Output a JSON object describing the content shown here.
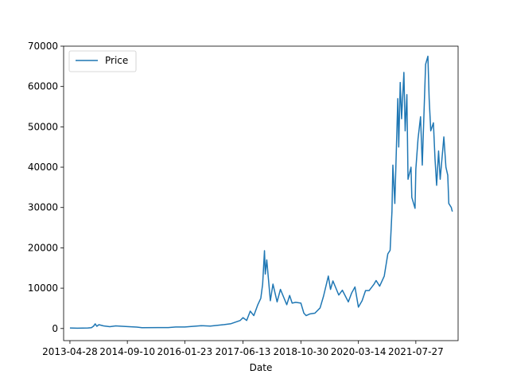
{
  "chart_data": {
    "type": "line",
    "title": "",
    "xlabel": "Date",
    "ylabel": "",
    "legend": {
      "placement": "top-left",
      "entries": [
        "Price"
      ]
    },
    "series_color": "#1f77b4",
    "x_ticks": [
      "2013-04-28",
      "2014-09-10",
      "2016-01-23",
      "2017-06-13",
      "2018-10-30",
      "2020-03-14",
      "2021-07-27"
    ],
    "y_ticks": [
      0,
      10000,
      20000,
      30000,
      40000,
      50000,
      60000,
      70000
    ],
    "ylim": [
      -3000,
      70000
    ],
    "xlim": [
      "2013-03-04",
      "2022-07-30"
    ],
    "grid": false,
    "series": [
      {
        "name": "Price",
        "points": [
          [
            "2013-04-28",
            135
          ],
          [
            "2013-07-01",
            90
          ],
          [
            "2013-10-01",
            125
          ],
          [
            "2013-11-01",
            200
          ],
          [
            "2013-11-20",
            600
          ],
          [
            "2013-12-04",
            1150
          ],
          [
            "2013-12-18",
            550
          ],
          [
            "2014-01-05",
            950
          ],
          [
            "2014-02-15",
            650
          ],
          [
            "2014-04-10",
            450
          ],
          [
            "2014-06-01",
            640
          ],
          [
            "2014-09-10",
            480
          ],
          [
            "2014-12-01",
            360
          ],
          [
            "2015-01-15",
            200
          ],
          [
            "2015-06-01",
            230
          ],
          [
            "2015-09-01",
            240
          ],
          [
            "2015-11-05",
            380
          ],
          [
            "2016-01-23",
            385
          ],
          [
            "2016-06-15",
            700
          ],
          [
            "2016-09-01",
            600
          ],
          [
            "2016-12-31",
            960
          ],
          [
            "2017-03-01",
            1200
          ],
          [
            "2017-05-20",
            2000
          ],
          [
            "2017-06-13",
            2700
          ],
          [
            "2017-07-15",
            2000
          ],
          [
            "2017-08-15",
            4300
          ],
          [
            "2017-09-15",
            3200
          ],
          [
            "2017-10-20",
            5900
          ],
          [
            "2017-11-15",
            7500
          ],
          [
            "2017-12-01",
            11000
          ],
          [
            "2017-12-17",
            19300
          ],
          [
            "2017-12-24",
            13500
          ],
          [
            "2018-01-06",
            17000
          ],
          [
            "2018-02-06",
            6900
          ],
          [
            "2018-03-01",
            11000
          ],
          [
            "2018-04-06",
            6600
          ],
          [
            "2018-05-05",
            9700
          ],
          [
            "2018-06-29",
            5900
          ],
          [
            "2018-07-24",
            8200
          ],
          [
            "2018-08-15",
            6300
          ],
          [
            "2018-09-15",
            6500
          ],
          [
            "2018-10-30",
            6300
          ],
          [
            "2018-11-25",
            3800
          ],
          [
            "2018-12-15",
            3200
          ],
          [
            "2019-01-15",
            3600
          ],
          [
            "2019-03-01",
            3800
          ],
          [
            "2019-04-15",
            5100
          ],
          [
            "2019-05-15",
            8000
          ],
          [
            "2019-06-26",
            13000
          ],
          [
            "2019-07-15",
            9700
          ],
          [
            "2019-08-05",
            11800
          ],
          [
            "2019-09-25",
            8300
          ],
          [
            "2019-10-26",
            9500
          ],
          [
            "2019-12-17",
            6600
          ],
          [
            "2020-01-15",
            8800
          ],
          [
            "2020-02-13",
            10300
          ],
          [
            "2020-03-14",
            5300
          ],
          [
            "2020-04-15",
            6900
          ],
          [
            "2020-05-15",
            9400
          ],
          [
            "2020-06-15",
            9400
          ],
          [
            "2020-07-28",
            11000
          ],
          [
            "2020-08-15",
            11900
          ],
          [
            "2020-09-15",
            10500
          ],
          [
            "2020-10-25",
            13000
          ],
          [
            "2020-11-25",
            18500
          ],
          [
            "2020-12-15",
            19400
          ],
          [
            "2020-12-31",
            29000
          ],
          [
            "2021-01-08",
            40500
          ],
          [
            "2021-01-25",
            31000
          ],
          [
            "2021-02-20",
            57000
          ],
          [
            "2021-02-28",
            45000
          ],
          [
            "2021-03-13",
            61000
          ],
          [
            "2021-03-25",
            52000
          ],
          [
            "2021-04-14",
            63500
          ],
          [
            "2021-04-25",
            49000
          ],
          [
            "2021-05-10",
            58000
          ],
          [
            "2021-05-20",
            37000
          ],
          [
            "2021-06-15",
            40000
          ],
          [
            "2021-06-22",
            32500
          ],
          [
            "2021-07-20",
            29800
          ],
          [
            "2021-07-27",
            39500
          ],
          [
            "2021-08-15",
            47000
          ],
          [
            "2021-09-06",
            52500
          ],
          [
            "2021-09-21",
            40500
          ],
          [
            "2021-10-20",
            65500
          ],
          [
            "2021-11-09",
            67500
          ],
          [
            "2021-11-20",
            57000
          ],
          [
            "2021-12-04",
            49000
          ],
          [
            "2021-12-27",
            51000
          ],
          [
            "2022-01-10",
            42000
          ],
          [
            "2022-01-24",
            35500
          ],
          [
            "2022-02-10",
            44000
          ],
          [
            "2022-02-24",
            37000
          ],
          [
            "2022-03-28",
            47500
          ],
          [
            "2022-04-15",
            40000
          ],
          [
            "2022-05-01",
            38000
          ],
          [
            "2022-05-10",
            31000
          ],
          [
            "2022-06-01",
            30000
          ],
          [
            "2022-06-05",
            29500
          ],
          [
            "2022-06-10",
            29000
          ]
        ]
      }
    ]
  }
}
